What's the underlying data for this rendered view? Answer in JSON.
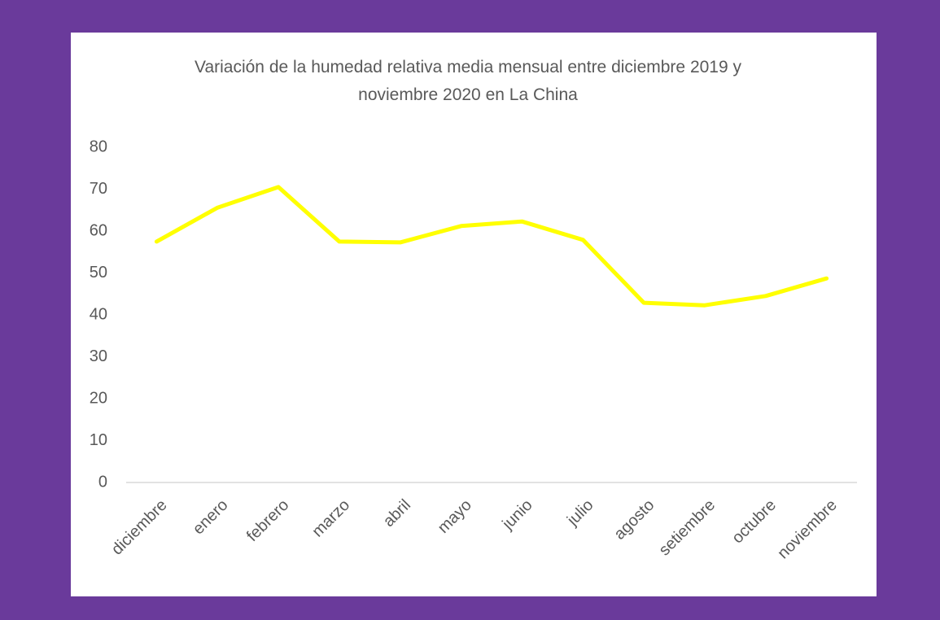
{
  "chart_data": {
    "type": "line",
    "title": "Variación de la humedad relativa media mensual entre diciembre 2019 y noviembre 2020 en La China",
    "categories": [
      "diciembre",
      "enero",
      "febrero",
      "marzo",
      "abril",
      "mayo",
      "junio",
      "julio",
      "agosto",
      "setiembre",
      "octubre",
      "noviembre"
    ],
    "values": [
      57.5,
      65.6,
      70.5,
      57.5,
      57.3,
      61.2,
      62.3,
      57.9,
      42.9,
      42.3,
      44.5,
      48.7
    ],
    "color": "#ffff00",
    "ylim": [
      0,
      80
    ],
    "yticks": [
      0,
      10,
      20,
      30,
      40,
      50,
      60,
      70,
      80
    ],
    "grid": false
  }
}
